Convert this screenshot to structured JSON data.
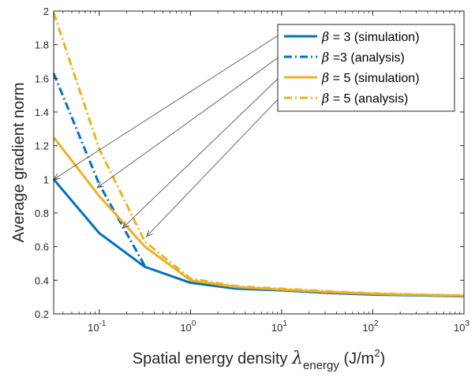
{
  "chart_data": {
    "type": "line",
    "xscale": "log",
    "xlim": [
      0.0316,
      1000
    ],
    "ylim": [
      0.2,
      2.0
    ],
    "xticks": [
      {
        "value": 0.1,
        "base": "10",
        "exp": "-1"
      },
      {
        "value": 1,
        "base": "10",
        "exp": "0"
      },
      {
        "value": 10,
        "base": "10",
        "exp": "1"
      },
      {
        "value": 100,
        "base": "10",
        "exp": "2"
      },
      {
        "value": 1000,
        "base": "10",
        "exp": "3"
      }
    ],
    "yticks": [
      {
        "value": 0.2,
        "label": "0.2"
      },
      {
        "value": 0.4,
        "label": "0.4"
      },
      {
        "value": 0.6,
        "label": "0.6"
      },
      {
        "value": 0.8,
        "label": "0.8"
      },
      {
        "value": 1.0,
        "label": "1"
      },
      {
        "value": 1.2,
        "label": "1.2"
      },
      {
        "value": 1.4,
        "label": "1.4"
      },
      {
        "value": 1.6,
        "label": "1.6"
      },
      {
        "value": 1.8,
        "label": "1.8"
      },
      {
        "value": 2.0,
        "label": "2"
      }
    ],
    "ylabel": "Average gradient norm",
    "xlabel": {
      "prefix": "Spatial energy density ",
      "symbol": "λ",
      "subscript": "energy",
      "unit_open": " (J/m",
      "unit_sup": "2",
      "unit_close": ")"
    },
    "legend_position": "top-right",
    "series": [
      {
        "legend_symbol": "β",
        "legend_rest": " = 3 (simulation)",
        "color": "#0072BD",
        "dash": "solid",
        "points": [
          [
            0.0316,
            1.0
          ],
          [
            0.1,
            0.68
          ],
          [
            0.316,
            0.48
          ],
          [
            1,
            0.385
          ],
          [
            3.16,
            0.35
          ],
          [
            10,
            0.34
          ],
          [
            31.6,
            0.325
          ],
          [
            100,
            0.315
          ],
          [
            316,
            0.31
          ],
          [
            1000,
            0.305
          ]
        ]
      },
      {
        "legend_symbol": "β",
        "legend_rest": " =3 (analysis)",
        "color": "#0072BD",
        "dash": "dashdot",
        "points": [
          [
            0.0316,
            1.63
          ],
          [
            0.1,
            0.97
          ],
          [
            0.316,
            0.485
          ]
        ]
      },
      {
        "legend_symbol": "β",
        "legend_rest": " = 5 (simulation)",
        "color": "#EDB120",
        "dash": "solid",
        "points": [
          [
            0.0316,
            1.25
          ],
          [
            0.1,
            0.9
          ],
          [
            0.316,
            0.6
          ],
          [
            1,
            0.4
          ],
          [
            3.16,
            0.36
          ],
          [
            10,
            0.345
          ],
          [
            31.6,
            0.33
          ],
          [
            100,
            0.32
          ],
          [
            316,
            0.313
          ],
          [
            1000,
            0.308
          ]
        ]
      },
      {
        "legend_symbol": "β",
        "legend_rest": " = 5 (analysis)",
        "color": "#EDB120",
        "dash": "dashdot",
        "points": [
          [
            0.0316,
            1.99
          ],
          [
            0.1,
            1.18
          ],
          [
            0.316,
            0.63
          ],
          [
            1,
            0.41
          ],
          [
            3.16,
            0.365
          ],
          [
            10,
            0.35
          ],
          [
            31.6,
            0.335
          ],
          [
            100,
            0.322
          ],
          [
            316,
            0.315
          ],
          [
            1000,
            0.31
          ]
        ]
      }
    ],
    "annotations": [
      {
        "from_series": 0,
        "target": [
          0.0316,
          1.0
        ]
      },
      {
        "from_series": 1,
        "target": [
          0.095,
          0.95
        ]
      },
      {
        "from_series": 2,
        "target": [
          0.18,
          0.71
        ]
      },
      {
        "from_series": 3,
        "target": [
          0.33,
          0.66
        ]
      }
    ]
  }
}
